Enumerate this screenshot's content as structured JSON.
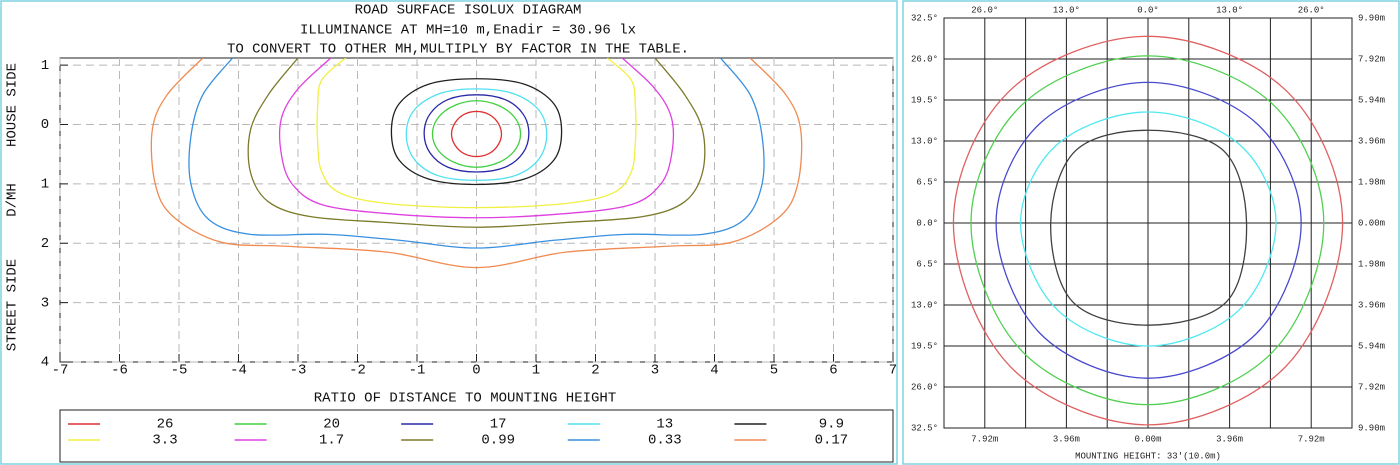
{
  "chart_data": [
    {
      "type": "isolux",
      "title": "ROAD SURFACE ISOLUX DIAGRAM",
      "subtitle": [
        "ILLUMINANCE AT MH=10 m,Enadir  = 30.96 lx",
        "TO CONVERT TO OTHER MH,MULTIPLY BY FACTOR IN THE TABLE."
      ],
      "xlabel": "RATIO OF DISTANCE TO MOUNTING HEIGHT",
      "ylabel": [
        "STREET SIDE",
        "D/MH",
        "HOUSE SIDE"
      ],
      "xlim": [
        -7,
        7
      ],
      "xticks": [
        -7,
        -6,
        -5,
        -4,
        -3,
        -2,
        -1,
        0,
        1,
        2,
        3,
        4,
        5,
        6,
        7
      ],
      "ylim": [
        -1.12,
        4
      ],
      "yticks": [
        {
          "value": -1,
          "label": "1"
        },
        0,
        1,
        2,
        3,
        4
      ],
      "grid": true,
      "series": [
        {
          "name": "26",
          "color": "#e03030",
          "x": [
            0.42,
            0.36,
            0.21,
            0,
            -0.21,
            -0.36,
            -0.42,
            -0.36,
            -0.21,
            0,
            0.21,
            0.36
          ],
          "values": [
            0.16,
            0.35,
            0.49,
            0.54,
            0.49,
            0.35,
            0.16,
            -0.03,
            -0.17,
            -0.22,
            -0.17,
            -0.03
          ]
        },
        {
          "name": "20",
          "color": "#40d040",
          "x": [
            0.74,
            0.64,
            0.37,
            0,
            -0.37,
            -0.64,
            -0.74,
            -0.64,
            -0.37,
            0,
            0.37,
            0.64
          ],
          "values": [
            0.16,
            0.44,
            0.64,
            0.72,
            0.64,
            0.44,
            0.16,
            -0.12,
            -0.32,
            -0.4,
            -0.32,
            -0.12
          ]
        },
        {
          "name": "17",
          "color": "#2828a8",
          "x": [
            0.88,
            0.78,
            0.48,
            0,
            -0.48,
            -0.78,
            -0.88,
            -0.78,
            -0.48,
            0,
            0.48,
            0.78
          ],
          "values": [
            0.15,
            0.48,
            0.72,
            0.8,
            0.72,
            0.48,
            0.15,
            -0.18,
            -0.42,
            -0.5,
            -0.42,
            -0.18
          ]
        },
        {
          "name": "13",
          "color": "#50e0f0",
          "x": [
            1.18,
            1.05,
            0.65,
            0,
            -0.65,
            -1.05,
            -1.18,
            -1.05,
            -0.62,
            0,
            0.62,
            1.05
          ],
          "values": [
            0.17,
            0.58,
            0.86,
            0.94,
            0.86,
            0.58,
            0.17,
            -0.24,
            -0.52,
            -0.6,
            -0.52,
            -0.24
          ]
        },
        {
          "name": "9.9",
          "color": "#202020",
          "x": [
            1.43,
            1.3,
            0.8,
            0,
            -0.8,
            -1.3,
            -1.43,
            -1.3,
            -0.8,
            0,
            0.8,
            1.3
          ],
          "values": [
            0.12,
            0.6,
            0.92,
            1.01,
            0.92,
            0.6,
            0.12,
            -0.35,
            -0.68,
            -0.77,
            -0.68,
            -0.35
          ]
        },
        {
          "name": "3.3",
          "color": "#f0f040",
          "x": [
            -2.2,
            -2.6,
            -2.67,
            -2.67,
            -2.6,
            -2.3,
            -1.5,
            0,
            1.5,
            2.3,
            2.6,
            2.67,
            2.67,
            2.6,
            2.2
          ],
          "values": [
            -1.12,
            -0.75,
            -0.3,
            0.3,
            0.8,
            1.15,
            1.33,
            1.4,
            1.33,
            1.15,
            0.8,
            0.3,
            -0.3,
            -0.75,
            -1.12
          ]
        },
        {
          "name": "1.7",
          "color": "#e040e0",
          "x": [
            -2.45,
            -3.0,
            -3.28,
            -3.28,
            -3.1,
            -2.6,
            -1.5,
            0,
            1.5,
            2.6,
            3.1,
            3.28,
            3.28,
            3.0,
            2.45
          ],
          "values": [
            -1.12,
            -0.6,
            -0.1,
            0.5,
            1.0,
            1.35,
            1.5,
            1.57,
            1.5,
            1.35,
            1.0,
            0.5,
            -0.1,
            -0.6,
            -1.12
          ]
        },
        {
          "name": "0.99",
          "color": "#7a7a2a",
          "x": [
            -3.0,
            -3.5,
            -3.8,
            -3.8,
            -3.5,
            -2.8,
            -1.5,
            0,
            1.5,
            2.8,
            3.5,
            3.8,
            3.8,
            3.5,
            3.0
          ],
          "values": [
            -1.12,
            -0.5,
            0.1,
            0.8,
            1.3,
            1.55,
            1.65,
            1.73,
            1.65,
            1.55,
            1.3,
            0.8,
            0.1,
            -0.5,
            -1.12
          ]
        },
        {
          "name": "0.33",
          "color": "#3890e0",
          "x": [
            -4.1,
            -4.6,
            -4.8,
            -4.8,
            -4.5,
            -3.8,
            -2.5,
            -1.3,
            0,
            1.3,
            2.5,
            3.8,
            4.5,
            4.8,
            4.8,
            4.6,
            4.1
          ],
          "values": [
            -1.12,
            -0.5,
            0.2,
            1.0,
            1.6,
            1.85,
            1.85,
            1.95,
            2.08,
            1.95,
            1.85,
            1.85,
            1.6,
            1.0,
            0.2,
            -0.5,
            -1.12
          ]
        },
        {
          "name": "0.17",
          "color": "#f08a50",
          "x": [
            -4.6,
            -5.2,
            -5.45,
            -5.4,
            -5.1,
            -4.3,
            -3.2,
            -1.5,
            0,
            1.5,
            3.2,
            4.3,
            5.1,
            5.4,
            5.45,
            5.2,
            4.6
          ],
          "values": [
            -1.12,
            -0.5,
            0.1,
            1.0,
            1.55,
            1.98,
            2.05,
            2.15,
            2.41,
            2.15,
            2.05,
            1.98,
            1.55,
            1.0,
            0.1,
            -0.5,
            -1.12
          ]
        }
      ]
    },
    {
      "type": "isocandela",
      "xlabel": "MOUNTING HEIGHT: 33'(10.0m)",
      "xlim": [
        -32.5,
        32.5
      ],
      "xticks": [
        {
          "value": -26,
          "label": "26.0°"
        },
        {
          "value": -13,
          "label": "13.0°"
        },
        {
          "value": 0,
          "label": "0.0°"
        },
        {
          "value": 13,
          "label": "13.0°"
        },
        {
          "value": 26,
          "label": "26.0°"
        }
      ],
      "x2lim": [
        -9.9,
        9.9
      ],
      "x2ticks": [
        {
          "value": -7.92,
          "label": "7.92m"
        },
        {
          "value": -3.96,
          "label": "3.96m"
        },
        {
          "value": 0,
          "label": "0.00m"
        },
        {
          "value": 3.96,
          "label": "3.96m"
        },
        {
          "value": 7.92,
          "label": "7.92m"
        }
      ],
      "ylim": [
        -32.5,
        32.5
      ],
      "yticks": [
        {
          "value": 32.5,
          "label": "32.5°"
        },
        {
          "value": 26,
          "label": "26.0°"
        },
        {
          "value": 19.5,
          "label": "19.5°"
        },
        {
          "value": 13,
          "label": "13.0°"
        },
        {
          "value": 6.5,
          "label": "6.5°"
        },
        {
          "value": 0,
          "label": "0.0°"
        },
        {
          "value": -6.5,
          "label": "6.5°"
        },
        {
          "value": -13,
          "label": "13.0°"
        },
        {
          "value": -19.5,
          "label": "19.5°"
        },
        {
          "value": -26,
          "label": "26.0°"
        },
        {
          "value": -32.5,
          "label": "32.5°"
        }
      ],
      "y2lim": [
        -9.9,
        9.9
      ],
      "y2ticks": [
        {
          "value": 9.9,
          "label": "9.90m"
        },
        {
          "value": 7.92,
          "label": "7.92m"
        },
        {
          "value": 5.94,
          "label": "5.94m"
        },
        {
          "value": 3.96,
          "label": "3.96m"
        },
        {
          "value": 1.98,
          "label": "1.98m"
        },
        {
          "value": 0,
          "label": "0.00m"
        },
        {
          "value": -1.98,
          "label": "1.98m"
        },
        {
          "value": -3.96,
          "label": "3.96m"
        },
        {
          "value": -5.94,
          "label": "5.94m"
        },
        {
          "value": -7.92,
          "label": "7.92m"
        },
        {
          "value": -9.9,
          "label": "9.90m"
        }
      ],
      "grid": true,
      "series": [
        {
          "color": "#e06060",
          "x": [
            0,
            22,
            31,
            22,
            0,
            -22,
            -31,
            -22
          ],
          "values": [
            29.6,
            21,
            0,
            -22.7,
            -32,
            -22.7,
            0,
            21
          ]
        },
        {
          "color": "#50d050",
          "x": [
            0,
            19.9,
            28,
            19.9,
            0,
            -20,
            -28.2,
            -20
          ],
          "values": [
            26.5,
            18.8,
            0,
            -20.4,
            -28.8,
            -20.4,
            0,
            18.8
          ]
        },
        {
          "color": "#4a4ad0",
          "x": [
            0,
            17.3,
            24.4,
            17.3,
            0,
            -17.2,
            -24.2,
            -17.2
          ],
          "values": [
            22.3,
            15.8,
            0,
            -17.5,
            -24.6,
            -17.5,
            0,
            15.8
          ]
        },
        {
          "color": "#50e8f0",
          "x": [
            0,
            14.5,
            20.4,
            14.5,
            0,
            -14.4,
            -20.3,
            -14.4
          ],
          "values": [
            17.6,
            12.5,
            0,
            -13.8,
            -19.5,
            -13.8,
            0,
            12.5
          ]
        },
        {
          "color": "#404040",
          "x": [
            0,
            12,
            15.7,
            12.5,
            0,
            -12,
            -15.5,
            -11.5
          ],
          "values": [
            14.7,
            11.5,
            0,
            -12.5,
            -16.2,
            -12.5,
            0,
            11.5
          ]
        }
      ]
    }
  ]
}
